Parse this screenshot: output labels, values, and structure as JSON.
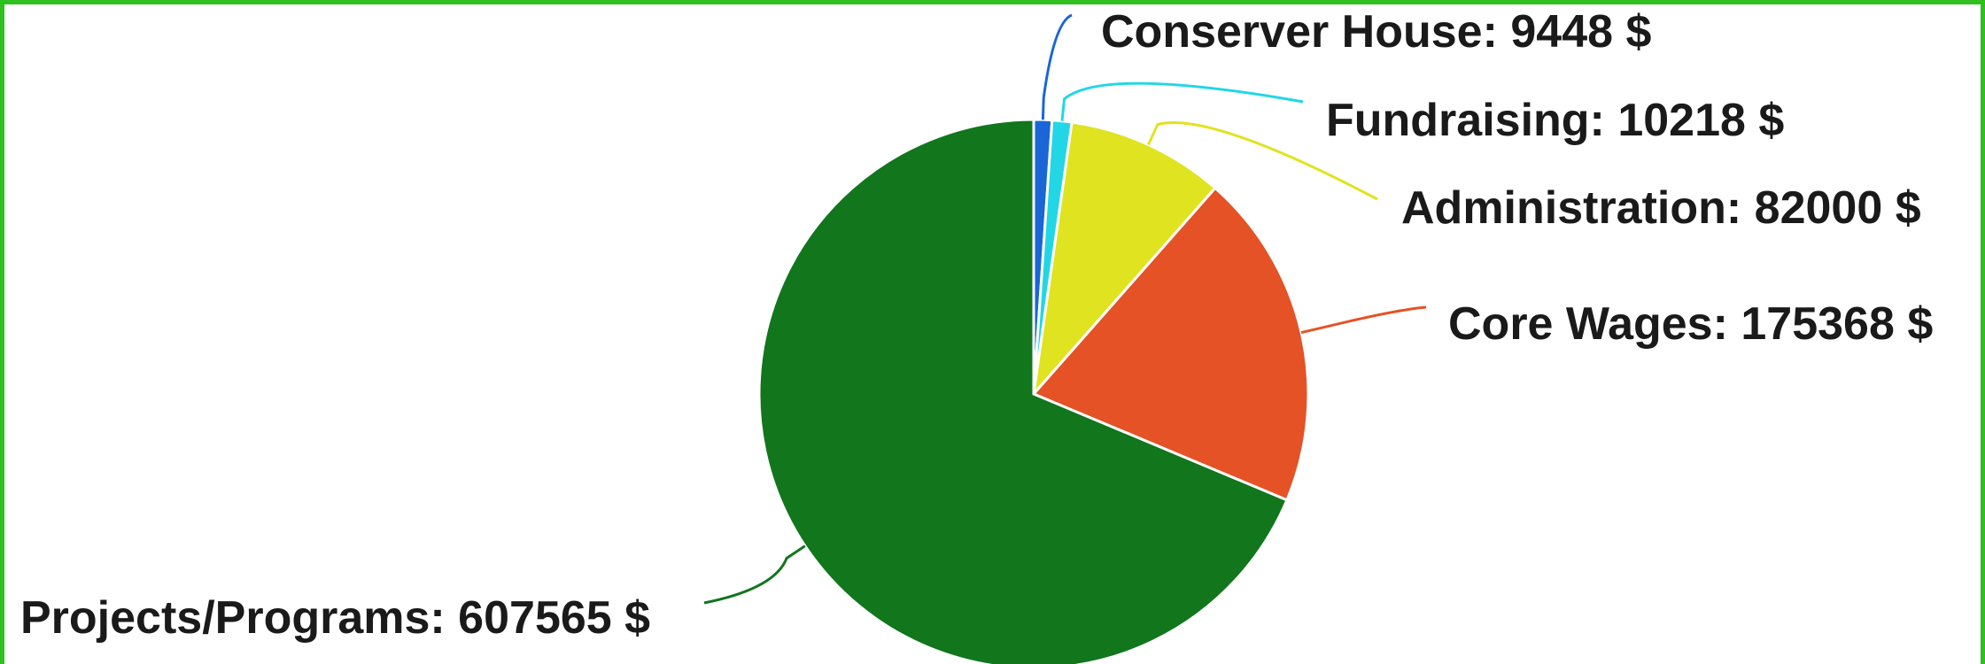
{
  "chart_data": {
    "type": "pie",
    "title": "",
    "currency_suffix": "$",
    "slices": [
      {
        "label": "Conserver House",
        "value": 9448,
        "color": "#1a66d6",
        "text": "Conserver House: 9448 $"
      },
      {
        "label": "Fundraising",
        "value": 10218,
        "color": "#22d6e6",
        "text": "Fundraising: 10218 $"
      },
      {
        "label": "Administration",
        "value": 82000,
        "color": "#e0e320",
        "text": "Administration: 82000 $"
      },
      {
        "label": "Core Wages",
        "value": 175368,
        "color": "#e45226",
        "text": "Core Wages: 175368 $"
      },
      {
        "label": "Projects/Programs",
        "value": 607565,
        "color": "#11761c",
        "text": "Projects/Programs: 607565 $"
      }
    ],
    "start_angle": "top",
    "direction": "clockwise",
    "legend": "none",
    "labels": "outside-with-leader-lines"
  }
}
